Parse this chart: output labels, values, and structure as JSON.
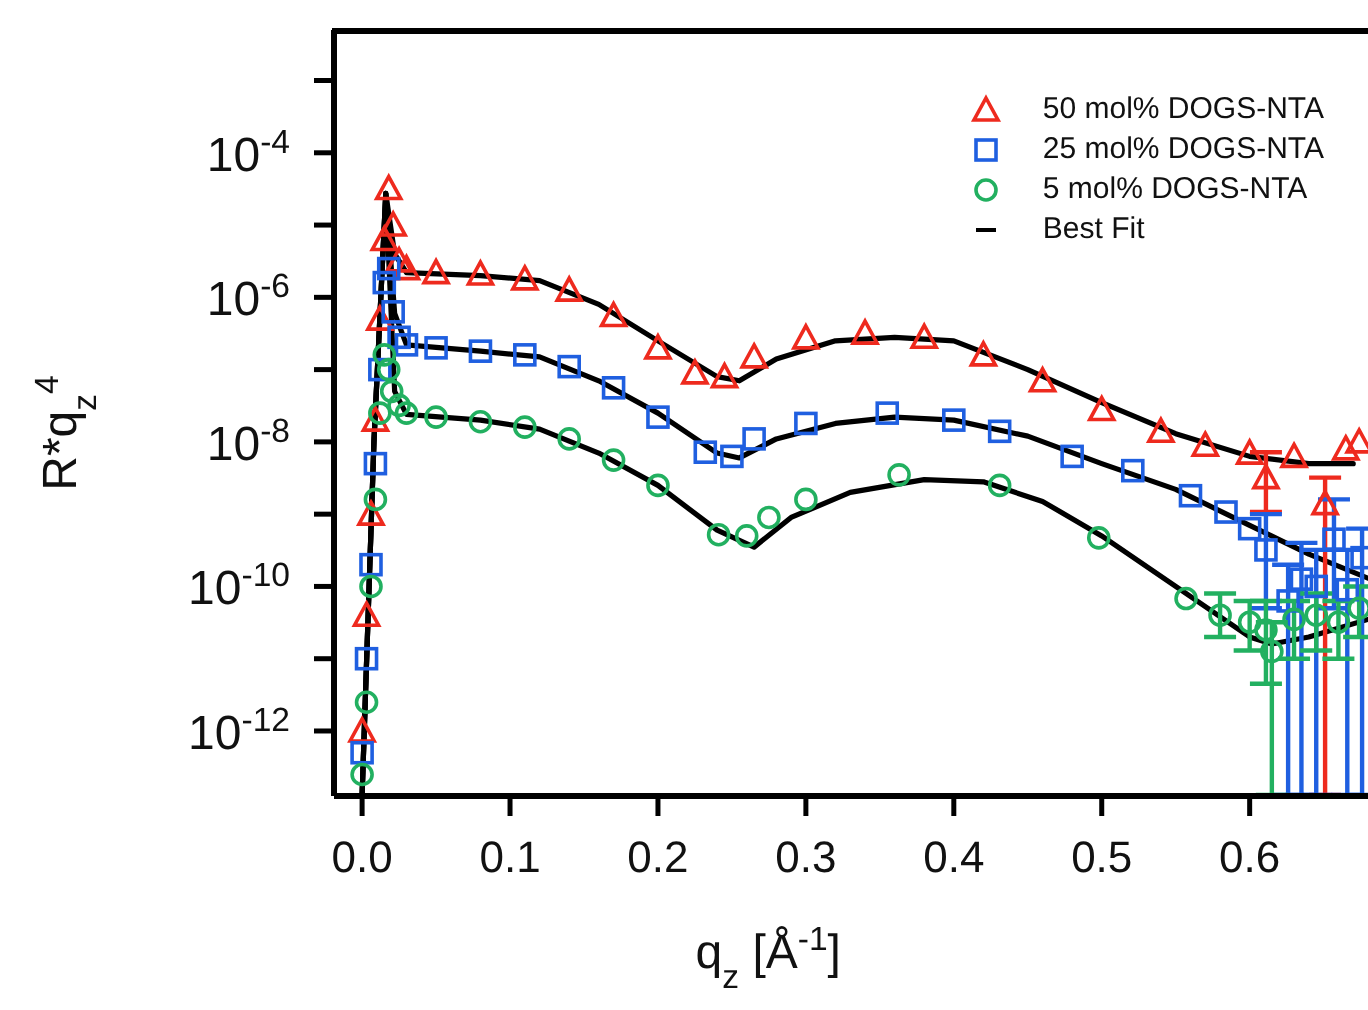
{
  "chart_data": {
    "type": "scatter",
    "xlabel": "q$_{z}$ [Å$^{-1}$]",
    "ylabel": "R*q$_{z}$$^{4}$",
    "log": "y",
    "legend": "top right",
    "xlim": [
      -0.019,
      0.68
    ],
    "ylim": [
      1.26e-13,
      0.005
    ],
    "xticks": [
      {
        "value": 0,
        "label": "0.0"
      },
      0.1,
      0.2,
      0.3,
      0.4,
      0.5,
      0.6
    ],
    "yticks": [
      {
        "value": 1e-12,
        "label": "10$^{-12}$"
      },
      {
        "value": 1e-11,
        "label": null
      },
      {
        "value": 1e-10,
        "label": "10$^{-10}$"
      },
      {
        "value": 1e-09,
        "label": null
      },
      {
        "value": 1e-08,
        "label": "10$^{-8}$"
      },
      {
        "value": 1e-07,
        "label": null
      },
      {
        "value": 1e-06,
        "label": "10$^{-6}$"
      },
      {
        "value": 1e-05,
        "label": null
      },
      {
        "value": 0.0001,
        "label": "10$^{-4}$"
      },
      {
        "value": 0.001,
        "label": null
      }
    ],
    "series": [
      {
        "name": "50 mol% DOGS-NTA",
        "marker": "triangle",
        "color": "#ee2a1e",
        "x": [
          0,
          0.003,
          0.006,
          0.009,
          0.012,
          0.015,
          0.018,
          0.021,
          0.025,
          0.03,
          0.05,
          0.08,
          0.11,
          0.14,
          0.17,
          0.2,
          0.225,
          0.245,
          0.265,
          0.3,
          0.34,
          0.38,
          0.42,
          0.46,
          0.5,
          0.54,
          0.57,
          0.6,
          0.611,
          0.63,
          0.651,
          0.665,
          0.674
        ],
        "values": [
          1e-12,
          4e-11,
          1e-09,
          2e-08,
          5e-07,
          6.3e-06,
          3.2e-05,
          1e-05,
          3.2e-06,
          2.5e-06,
          2.2e-06,
          2.1e-06,
          1.8e-06,
          1.26e-06,
          5.6e-07,
          2e-07,
          9e-08,
          8e-08,
          1.5e-07,
          2.75e-07,
          3.2e-07,
          2.8e-07,
          1.6e-07,
          7e-08,
          2.8e-08,
          1.4e-08,
          9e-09,
          7e-09,
          3.2e-09,
          6.3e-09,
          1.4e-09,
          8e-09,
          1e-08
        ],
        "errors": [
          null,
          null,
          null,
          null,
          null,
          null,
          null,
          null,
          null,
          null,
          null,
          null,
          null,
          null,
          null,
          null,
          null,
          null,
          null,
          null,
          null,
          null,
          null,
          null,
          null,
          null,
          null,
          null,
          [
            1.07e-09,
            7.2e-09
          ],
          null,
          [
            1.3e-13,
            3.2e-09
          ],
          null,
          null
        ]
      },
      {
        "name": "25 mol% DOGS-NTA",
        "marker": "square",
        "color": "#1f5fe0",
        "x": [
          0,
          0.003,
          0.006,
          0.009,
          0.012,
          0.015,
          0.018,
          0.021,
          0.025,
          0.03,
          0.05,
          0.08,
          0.11,
          0.14,
          0.17,
          0.2,
          0.232,
          0.25,
          0.265,
          0.3,
          0.355,
          0.4,
          0.431,
          0.48,
          0.521,
          0.56,
          0.584,
          0.6,
          0.611,
          0.626,
          0.635,
          0.645,
          0.657,
          0.666,
          0.676
        ],
        "values": [
          5e-13,
          1e-11,
          2e-10,
          5e-09,
          1e-07,
          1.6e-06,
          2.5e-06,
          6.3e-07,
          2.8e-07,
          2.2e-07,
          2e-07,
          1.8e-07,
          1.6e-07,
          1.1e-07,
          5.6e-08,
          2.2e-08,
          7.2e-09,
          6.3e-09,
          1.1e-08,
          1.8e-08,
          2.5e-08,
          2e-08,
          1.4e-08,
          6.3e-09,
          4e-09,
          1.8e-09,
          1.07e-09,
          6.3e-10,
          3.2e-10,
          6.3e-11,
          1.26e-10,
          1e-10,
          4.5e-10,
          9e-11,
          2.5e-10
        ],
        "errors": [
          null,
          null,
          null,
          null,
          null,
          null,
          null,
          null,
          null,
          null,
          null,
          null,
          null,
          null,
          null,
          null,
          null,
          null,
          null,
          null,
          null,
          null,
          null,
          null,
          null,
          null,
          null,
          null,
          [
            5e-11,
            1e-09
          ],
          [
            1.3e-13,
            2e-10
          ],
          [
            1.3e-13,
            4e-10
          ],
          [
            1.3e-13,
            3.2e-10
          ],
          [
            5e-11,
            1.6e-09
          ],
          [
            1.3e-13,
            3.2e-10
          ],
          [
            1.3e-13,
            6.3e-10
          ]
        ]
      },
      {
        "name": "5 mol% DOGS-NTA",
        "marker": "circle",
        "color": "#22b060",
        "x": [
          0,
          0.003,
          0.006,
          0.009,
          0.012,
          0.015,
          0.018,
          0.02,
          0.025,
          0.03,
          0.05,
          0.08,
          0.11,
          0.14,
          0.17,
          0.2,
          0.241,
          0.26,
          0.275,
          0.3,
          0.363,
          0.431,
          0.498,
          0.557,
          0.58,
          0.6,
          0.611,
          0.615,
          0.63,
          0.645,
          0.66,
          0.674
        ],
        "values": [
          2.5e-13,
          2.5e-12,
          1e-10,
          1.6e-09,
          2.5e-08,
          1.6e-07,
          1e-07,
          5e-08,
          3.2e-08,
          2.5e-08,
          2.2e-08,
          1.9e-08,
          1.6e-08,
          1.1e-08,
          5.6e-09,
          2.5e-09,
          5.2e-10,
          5e-10,
          9e-10,
          1.6e-09,
          3.5e-09,
          2.5e-09,
          4.7e-10,
          6.8e-11,
          4e-11,
          3.2e-11,
          2.5e-11,
          1.26e-11,
          3.5e-11,
          4e-11,
          3.2e-11,
          5e-11
        ],
        "errors": [
          null,
          null,
          null,
          null,
          null,
          null,
          null,
          null,
          null,
          null,
          null,
          null,
          null,
          null,
          null,
          null,
          null,
          null,
          null,
          null,
          null,
          null,
          null,
          null,
          [
            2e-11,
            8e-11
          ],
          [
            1.3e-11,
            6.3e-11
          ],
          [
            4.5e-12,
            6.3e-11
          ],
          [
            1.3e-13,
            3.2e-11
          ],
          [
            1e-11,
            6.3e-11
          ],
          [
            1.3e-11,
            8e-11
          ],
          [
            1e-11,
            6.3e-11
          ],
          [
            2e-11,
            1e-10
          ]
        ]
      },
      {
        "name": "Best Fit",
        "type": "line",
        "marker": "none",
        "color": "#000000",
        "x": [
          0,
          0.008,
          0.016,
          0.022,
          0.03,
          0.08,
          0.12,
          0.16,
          0.2,
          0.24,
          0.255,
          0.28,
          0.32,
          0.36,
          0.4,
          0.45,
          0.5,
          0.55,
          0.6,
          0.64,
          0.67
        ],
        "values": [
          1.3e-13,
          1e-08,
          2.75e-05,
          4e-06,
          2.2e-06,
          2e-06,
          1.7e-06,
          8e-07,
          2.5e-07,
          8e-08,
          7e-08,
          1.4e-07,
          2.5e-07,
          2.8e-07,
          2.5e-07,
          1e-07,
          3.5e-08,
          1.3e-08,
          6.3e-09,
          5e-09,
          5e-09
        ]
      },
      {
        "type": "line",
        "marker": "none",
        "color": "#000000",
        "x": [
          0,
          0.008,
          0.016,
          0.022,
          0.03,
          0.08,
          0.12,
          0.16,
          0.2,
          0.24,
          0.255,
          0.28,
          0.32,
          0.36,
          0.4,
          0.45,
          0.5,
          0.55,
          0.6,
          0.64,
          0.68
        ],
        "values": [
          1.3e-13,
          1e-08,
          2.75e-05,
          6e-07,
          2.2e-07,
          1.8e-07,
          1.5e-07,
          7e-08,
          2.5e-08,
          7e-09,
          6e-09,
          1.1e-08,
          1.8e-08,
          2.2e-08,
          2e-08,
          1.2e-08,
          5e-09,
          2.2e-09,
          7e-10,
          2.8e-10,
          1.3e-10
        ]
      },
      {
        "type": "line",
        "marker": "none",
        "color": "#000000",
        "x": [
          0,
          0.008,
          0.016,
          0.022,
          0.03,
          0.08,
          0.12,
          0.16,
          0.2,
          0.24,
          0.265,
          0.29,
          0.33,
          0.38,
          0.42,
          0.46,
          0.5,
          0.55,
          0.6,
          0.615,
          0.64,
          0.68
        ],
        "values": [
          1.3e-13,
          1e-08,
          2.75e-05,
          5e-08,
          2.4e-08,
          2e-08,
          1.5e-08,
          7e-09,
          2.5e-09,
          6e-10,
          3.5e-10,
          9e-10,
          2e-09,
          3e-09,
          2.8e-09,
          1.5e-09,
          5e-10,
          1e-10,
          2e-11,
          1.6e-11,
          2e-11,
          3.5e-11
        ]
      }
    ]
  }
}
